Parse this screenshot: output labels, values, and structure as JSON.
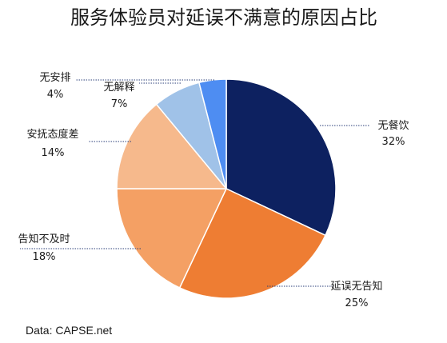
{
  "chart_data": {
    "type": "pie",
    "title": "服务体验员对延误不满意的原因占比",
    "slices": [
      {
        "label": "无餐饮",
        "value": 32,
        "value_label": "32%",
        "color": "#0d2160"
      },
      {
        "label": "延误无告知",
        "value": 25,
        "value_label": "25%",
        "color": "#ee7d33"
      },
      {
        "label": "告知不及时",
        "value": 18,
        "value_label": "18%",
        "color": "#f4a064"
      },
      {
        "label": "安抚态度差",
        "value": 14,
        "value_label": "14%",
        "color": "#f6b98c"
      },
      {
        "label": "无解释",
        "value": 7,
        "value_label": "7%",
        "color": "#a0c2e8"
      },
      {
        "label": "无安排",
        "value": 4,
        "value_label": "4%",
        "color": "#4e8df2"
      }
    ],
    "start_angle": "12 o'clock",
    "direction": "clockwise",
    "source": "Data: CAPSE.net"
  }
}
